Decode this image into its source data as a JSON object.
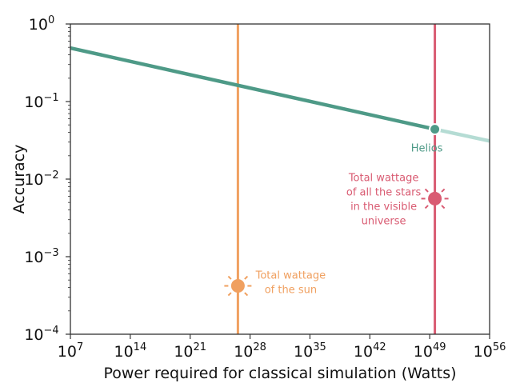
{
  "chart_data": {
    "type": "line",
    "title": "",
    "xlabel": "Power required for classical simulation (Watts)",
    "ylabel": "Accuracy",
    "xscale": "log",
    "yscale": "log",
    "xlim": [
      10000000.0,
      1e+56
    ],
    "ylim": [
      0.0001,
      1
    ],
    "grid": false,
    "x_ticks": [
      {
        "base": "10",
        "exp": "7",
        "value": 10000000.0
      },
      {
        "base": "10",
        "exp": "14",
        "value": 100000000000000.0
      },
      {
        "base": "10",
        "exp": "21",
        "value": 1e+21
      },
      {
        "base": "10",
        "exp": "28",
        "value": 1e+28
      },
      {
        "base": "10",
        "exp": "35",
        "value": 1e+35
      },
      {
        "base": "10",
        "exp": "42",
        "value": 1e+42
      },
      {
        "base": "10",
        "exp": "49",
        "value": 1e+49
      },
      {
        "base": "10",
        "exp": "56",
        "value": 1e+56
      }
    ],
    "y_ticks": [
      {
        "base": "10",
        "exp": "0",
        "value": 1
      },
      {
        "base": "10",
        "exp": "−1",
        "value": 0.1
      },
      {
        "base": "10",
        "exp": "−2",
        "value": 0.01
      },
      {
        "base": "10",
        "exp": "−3",
        "value": 0.001
      },
      {
        "base": "10",
        "exp": "−4",
        "value": 0.0001
      }
    ],
    "series": [
      {
        "name": "Helios",
        "color": "#4e9a87",
        "faded_color": "#b5dcd4",
        "points": [
          [
            10000000.0,
            0.49
          ],
          [
            4e+49,
            0.044
          ],
          [
            1e+56,
            0.031
          ]
        ],
        "marker": {
          "x": 4e+49,
          "y": 0.044,
          "label": "Helios"
        }
      }
    ],
    "vlines": [
      {
        "x": 3.8e+26,
        "color": "#f0a060",
        "marker_y": 0.00042,
        "icon": "sun-icon",
        "label": [
          "Total wattage",
          "of the sun"
        ]
      },
      {
        "x": 4e+49,
        "color": "#d95b72",
        "marker_y": 0.0056,
        "icon": "sun-icon",
        "label": [
          "Total wattage",
          "of all the stars",
          "in the visible",
          "universe"
        ]
      }
    ]
  }
}
